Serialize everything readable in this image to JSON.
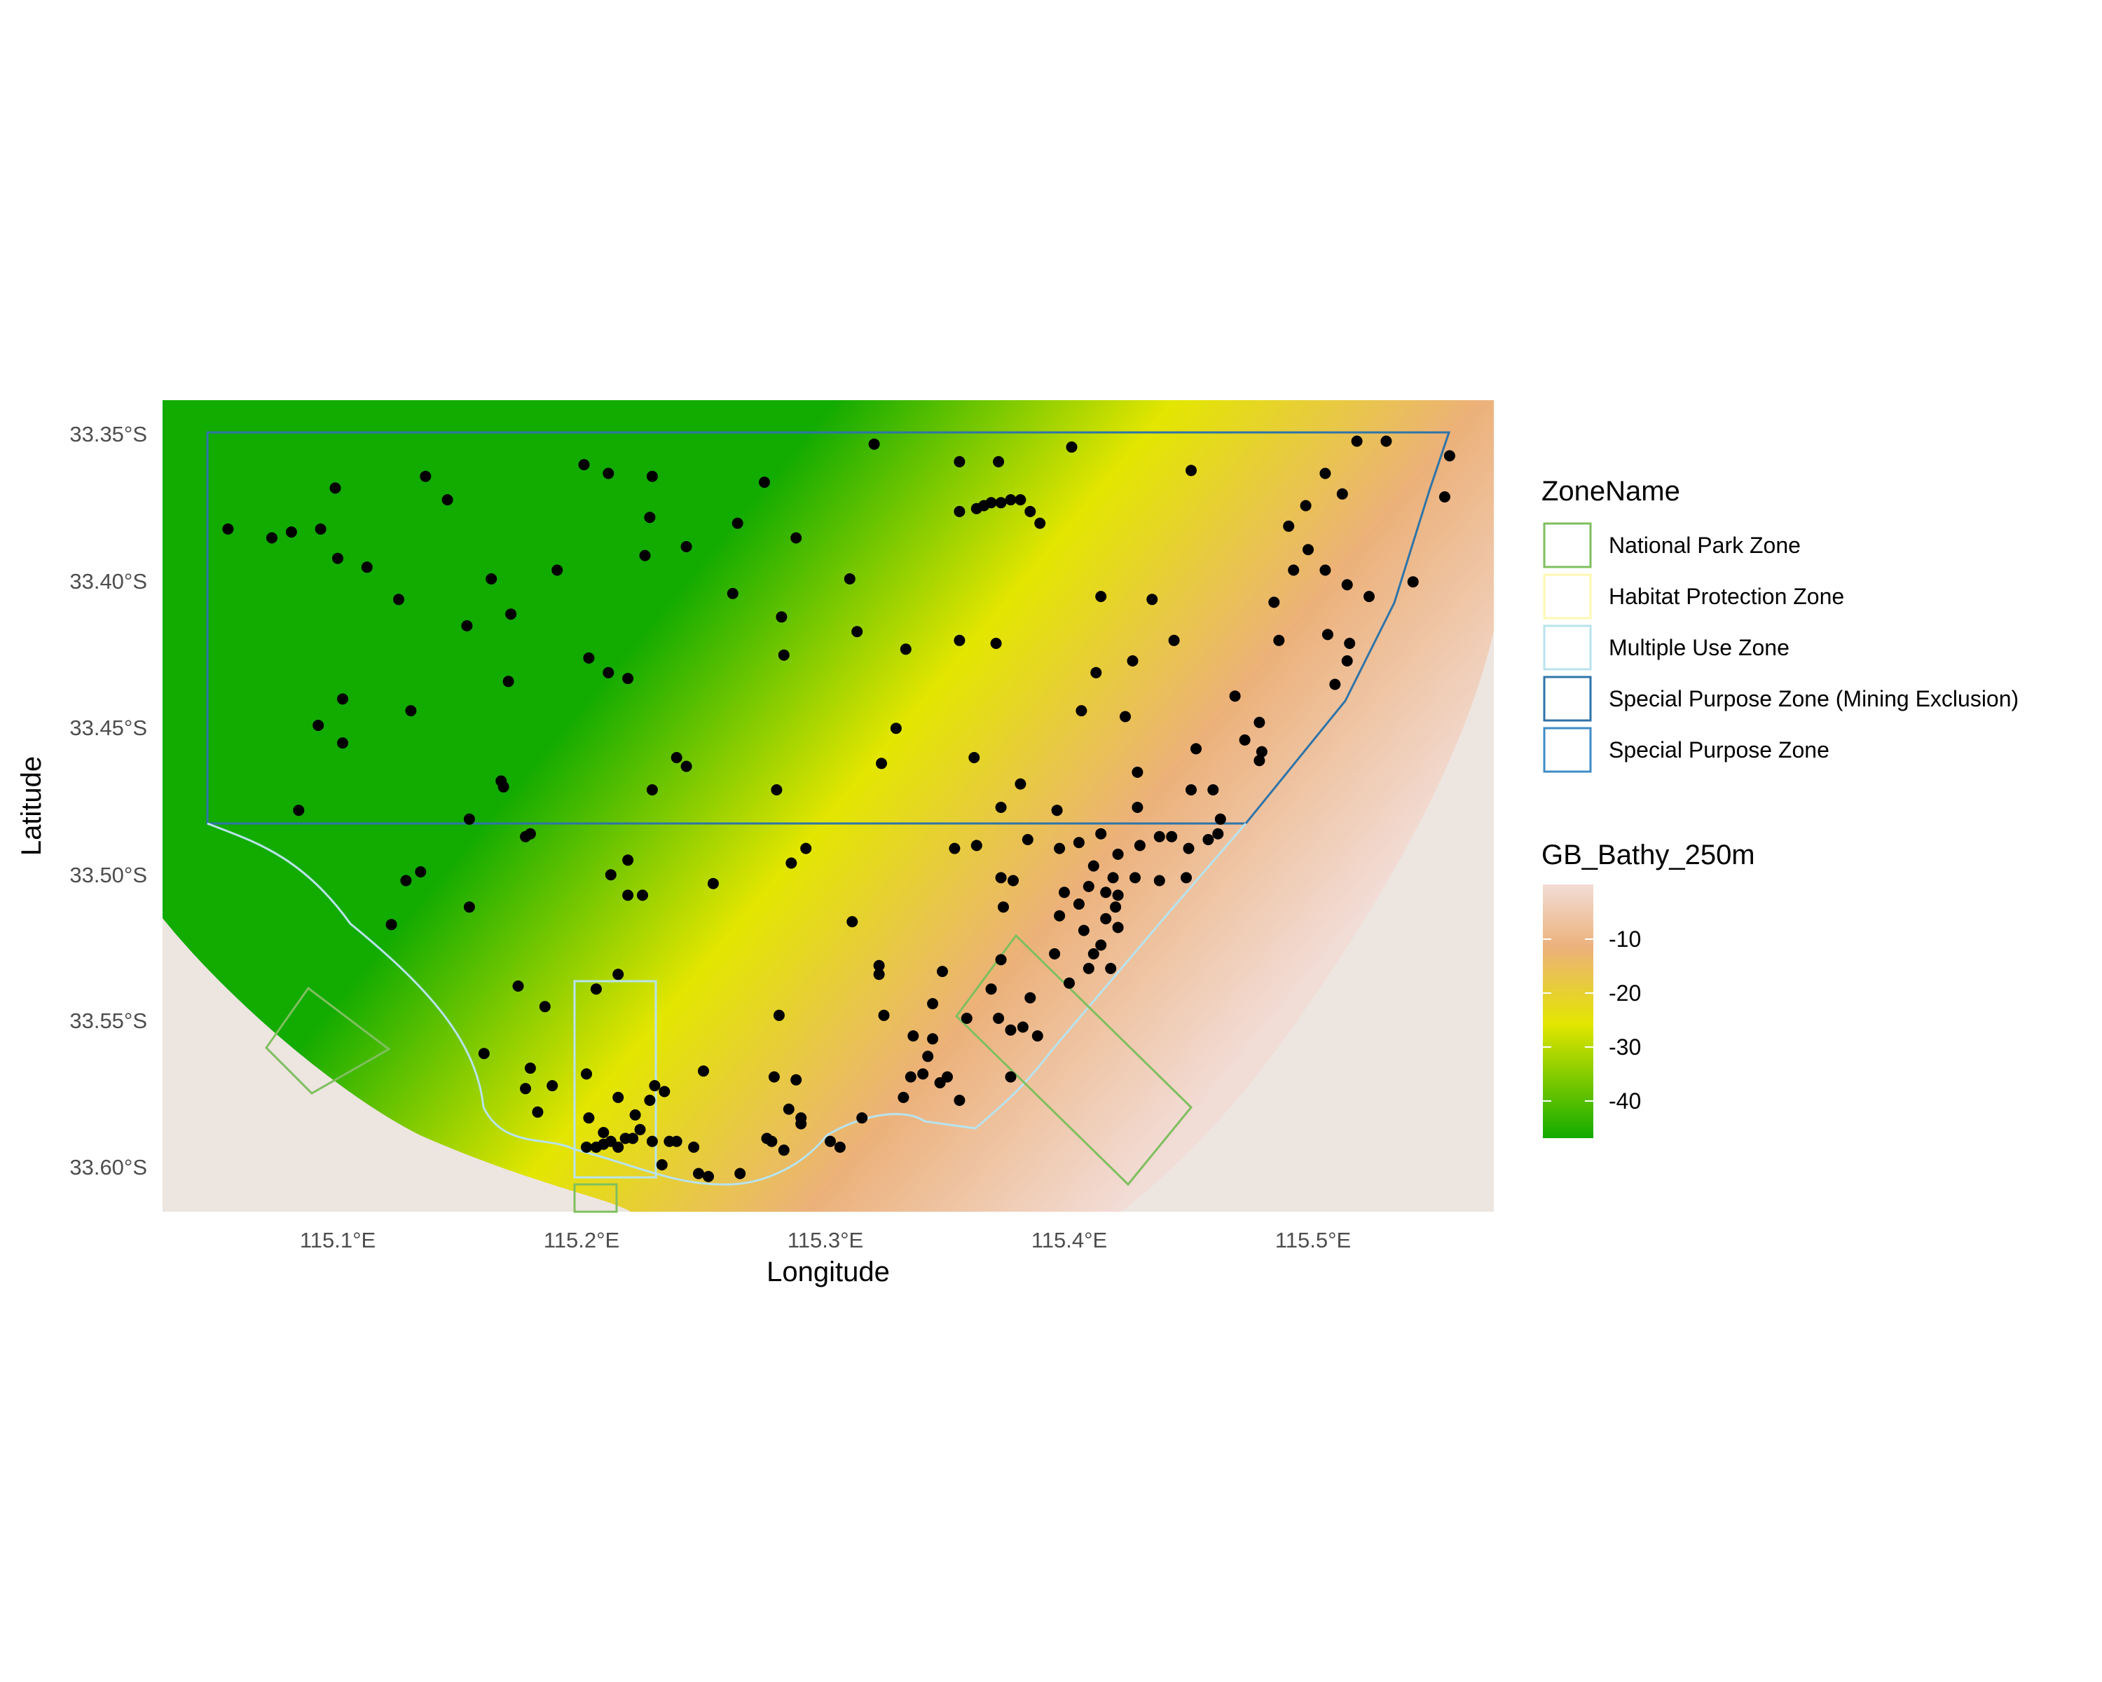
{
  "map": {
    "xlabel": "Longitude",
    "ylabel": "Latitude",
    "x_ticks": [
      "115.1°E",
      "115.2°E",
      "115.3°E",
      "115.4°E",
      "115.5°E"
    ],
    "y_ticks": [
      "33.35°S",
      "33.40°S",
      "33.45°S",
      "33.50°S",
      "33.55°S",
      "33.60°S"
    ]
  },
  "legend": {
    "zone_title": "ZoneName",
    "zones": [
      {
        "label": "National Park Zone",
        "color": "#7fbf5f"
      },
      {
        "label": "Habitat Protection Zone",
        "color": "#fff7b0"
      },
      {
        "label": "Multiple Use Zone",
        "color": "#b8e3ee"
      },
      {
        "label": "Special Purpose Zone (Mining Exclusion)",
        "color": "#2f74a8"
      },
      {
        "label": "Special Purpose Zone",
        "color": "#3f8cc6"
      }
    ],
    "bathy_title": "GB_Bathy_250m",
    "bathy_ticks": [
      "-10",
      "-20",
      "-30",
      "-40"
    ]
  },
  "colors": {
    "land": "#ede5e0",
    "deep": "#12ab00",
    "mid": "#e3e600",
    "shallow": "#ecb17a",
    "shore": "#f2dcd6",
    "points": "#000000"
  },
  "chart_data": {
    "type": "scatter",
    "xlabel": "Longitude",
    "ylabel": "Latitude",
    "xlim": [
      115.03,
      115.58
    ],
    "ylim": [
      -33.615,
      -33.34
    ],
    "bathy_range": [
      -46,
      -1
    ],
    "points": [
      [
        115.055,
        -33.383
      ],
      [
        115.073,
        -33.386
      ],
      [
        115.081,
        -33.384
      ],
      [
        115.099,
        -33.369
      ],
      [
        115.1,
        -33.393
      ],
      [
        115.112,
        -33.396
      ],
      [
        115.136,
        -33.365
      ],
      [
        115.145,
        -33.373
      ],
      [
        115.093,
        -33.383
      ],
      [
        115.125,
        -33.407
      ],
      [
        115.153,
        -33.416
      ],
      [
        115.163,
        -33.4
      ],
      [
        115.171,
        -33.412
      ],
      [
        115.102,
        -33.441
      ],
      [
        115.13,
        -33.445
      ],
      [
        115.092,
        -33.45
      ],
      [
        115.102,
        -33.456
      ],
      [
        115.084,
        -33.479
      ],
      [
        115.167,
        -33.469
      ],
      [
        115.168,
        -33.471
      ],
      [
        115.154,
        -33.482
      ],
      [
        115.177,
        -33.488
      ],
      [
        115.179,
        -33.487
      ],
      [
        115.17,
        -33.435
      ],
      [
        115.19,
        -33.397
      ],
      [
        115.201,
        -33.361
      ],
      [
        115.211,
        -33.364
      ],
      [
        115.229,
        -33.365
      ],
      [
        115.226,
        -33.392
      ],
      [
        115.228,
        -33.379
      ],
      [
        115.243,
        -33.389
      ],
      [
        115.262,
        -33.405
      ],
      [
        115.264,
        -33.381
      ],
      [
        115.275,
        -33.367
      ],
      [
        115.288,
        -33.386
      ],
      [
        115.31,
        -33.4
      ],
      [
        115.32,
        -33.354
      ],
      [
        115.355,
        -33.36
      ],
      [
        115.371,
        -33.36
      ],
      [
        115.355,
        -33.377
      ],
      [
        115.362,
        -33.376
      ],
      [
        115.365,
        -33.375
      ],
      [
        115.368,
        -33.374
      ],
      [
        115.372,
        -33.374
      ],
      [
        115.376,
        -33.373
      ],
      [
        115.38,
        -33.373
      ],
      [
        115.384,
        -33.377
      ],
      [
        115.388,
        -33.381
      ],
      [
        115.401,
        -33.355
      ],
      [
        115.413,
        -33.406
      ],
      [
        115.434,
        -33.407
      ],
      [
        115.45,
        -33.363
      ],
      [
        115.49,
        -33.382
      ],
      [
        115.497,
        -33.375
      ],
      [
        115.505,
        -33.364
      ],
      [
        115.518,
        -33.353
      ],
      [
        115.53,
        -33.353
      ],
      [
        115.556,
        -33.358
      ],
      [
        115.554,
        -33.372
      ],
      [
        115.498,
        -33.39
      ],
      [
        115.512,
        -33.371
      ],
      [
        115.492,
        -33.397
      ],
      [
        115.484,
        -33.408
      ],
      [
        115.505,
        -33.397
      ],
      [
        115.514,
        -33.402
      ],
      [
        115.523,
        -33.406
      ],
      [
        115.541,
        -33.401
      ],
      [
        115.506,
        -33.419
      ],
      [
        115.486,
        -33.421
      ],
      [
        115.515,
        -33.422
      ],
      [
        115.514,
        -33.428
      ],
      [
        115.509,
        -33.436
      ],
      [
        115.443,
        -33.421
      ],
      [
        115.468,
        -33.44
      ],
      [
        115.426,
        -33.428
      ],
      [
        115.411,
        -33.432
      ],
      [
        115.405,
        -33.445
      ],
      [
        115.423,
        -33.447
      ],
      [
        115.355,
        -33.421
      ],
      [
        115.37,
        -33.422
      ],
      [
        115.333,
        -33.424
      ],
      [
        115.313,
        -33.418
      ],
      [
        115.282,
        -33.413
      ],
      [
        115.283,
        -33.426
      ],
      [
        115.203,
        -33.427
      ],
      [
        115.211,
        -33.432
      ],
      [
        115.219,
        -33.434
      ],
      [
        115.329,
        -33.451
      ],
      [
        115.323,
        -33.463
      ],
      [
        115.239,
        -33.461
      ],
      [
        115.243,
        -33.464
      ],
      [
        115.229,
        -33.472
      ],
      [
        115.28,
        -33.472
      ],
      [
        115.361,
        -33.461
      ],
      [
        115.372,
        -33.478
      ],
      [
        115.38,
        -33.47
      ],
      [
        115.395,
        -33.479
      ],
      [
        115.428,
        -33.466
      ],
      [
        115.452,
        -33.458
      ],
      [
        115.472,
        -33.455
      ],
      [
        115.478,
        -33.449
      ],
      [
        115.478,
        -33.462
      ],
      [
        115.459,
        -33.472
      ],
      [
        115.428,
        -33.478
      ],
      [
        115.437,
        -33.488
      ],
      [
        115.462,
        -33.482
      ],
      [
        115.479,
        -33.459
      ],
      [
        115.45,
        -33.472
      ],
      [
        115.396,
        -33.492
      ],
      [
        115.404,
        -33.49
      ],
      [
        115.41,
        -33.498
      ],
      [
        115.42,
        -33.494
      ],
      [
        115.429,
        -33.491
      ],
      [
        115.442,
        -33.488
      ],
      [
        115.449,
        -33.492
      ],
      [
        115.457,
        -33.489
      ],
      [
        115.461,
        -33.487
      ],
      [
        115.418,
        -33.502
      ],
      [
        115.427,
        -33.502
      ],
      [
        115.437,
        -33.503
      ],
      [
        115.448,
        -33.502
      ],
      [
        115.398,
        -33.507
      ],
      [
        115.404,
        -33.511
      ],
      [
        115.408,
        -33.505
      ],
      [
        115.415,
        -33.507
      ],
      [
        115.419,
        -33.512
      ],
      [
        115.42,
        -33.508
      ],
      [
        115.415,
        -33.516
      ],
      [
        115.42,
        -33.519
      ],
      [
        115.406,
        -33.52
      ],
      [
        115.413,
        -33.525
      ],
      [
        115.41,
        -33.528
      ],
      [
        115.396,
        -33.515
      ],
      [
        115.394,
        -33.528
      ],
      [
        115.408,
        -33.533
      ],
      [
        115.417,
        -33.533
      ],
      [
        115.4,
        -33.538
      ],
      [
        115.377,
        -33.503
      ],
      [
        115.362,
        -33.491
      ],
      [
        115.373,
        -33.512
      ],
      [
        115.372,
        -33.53
      ],
      [
        115.348,
        -33.534
      ],
      [
        115.344,
        -33.545
      ],
      [
        115.358,
        -33.55
      ],
      [
        115.368,
        -33.54
      ],
      [
        115.371,
        -33.55
      ],
      [
        115.376,
        -33.554
      ],
      [
        115.384,
        -33.543
      ],
      [
        115.381,
        -33.553
      ],
      [
        115.387,
        -33.556
      ],
      [
        115.336,
        -33.556
      ],
      [
        115.344,
        -33.557
      ],
      [
        115.342,
        -33.563
      ],
      [
        115.35,
        -33.57
      ],
      [
        115.34,
        -33.569
      ],
      [
        115.347,
        -33.572
      ],
      [
        115.335,
        -33.57
      ],
      [
        115.355,
        -33.578
      ],
      [
        115.376,
        -33.57
      ],
      [
        115.332,
        -33.577
      ],
      [
        115.315,
        -33.584
      ],
      [
        115.306,
        -33.594
      ],
      [
        115.29,
        -33.584
      ],
      [
        115.302,
        -33.592
      ],
      [
        115.29,
        -33.586
      ],
      [
        115.276,
        -33.591
      ],
      [
        115.279,
        -33.57
      ],
      [
        115.288,
        -33.571
      ],
      [
        115.283,
        -33.595
      ],
      [
        115.285,
        -33.581
      ],
      [
        115.278,
        -33.592
      ],
      [
        115.322,
        -33.532
      ],
      [
        115.322,
        -33.535
      ],
      [
        115.324,
        -33.549
      ],
      [
        115.311,
        -33.517
      ],
      [
        115.281,
        -33.549
      ],
      [
        115.25,
        -33.568
      ],
      [
        115.246,
        -33.594
      ],
      [
        115.248,
        -33.603
      ],
      [
        115.252,
        -33.604
      ],
      [
        115.265,
        -33.603
      ],
      [
        115.215,
        -33.535
      ],
      [
        115.185,
        -33.546
      ],
      [
        115.174,
        -33.539
      ],
      [
        115.16,
        -33.562
      ],
      [
        115.179,
        -33.567
      ],
      [
        115.177,
        -33.574
      ],
      [
        115.188,
        -33.573
      ],
      [
        115.182,
        -33.582
      ],
      [
        115.202,
        -33.569
      ],
      [
        115.203,
        -33.584
      ],
      [
        115.209,
        -33.589
      ],
      [
        115.215,
        -33.577
      ],
      [
        115.222,
        -33.583
      ],
      [
        115.228,
        -33.578
      ],
      [
        115.23,
        -33.573
      ],
      [
        115.234,
        -33.575
      ],
      [
        115.236,
        -33.592
      ],
      [
        115.239,
        -33.592
      ],
      [
        115.224,
        -33.588
      ],
      [
        115.229,
        -33.592
      ],
      [
        115.218,
        -33.591
      ],
      [
        115.212,
        -33.592
      ],
      [
        115.209,
        -33.593
      ],
      [
        115.206,
        -33.594
      ],
      [
        115.202,
        -33.594
      ],
      [
        115.215,
        -33.594
      ],
      [
        115.221,
        -33.591
      ],
      [
        115.233,
        -33.6
      ],
      [
        115.206,
        -33.54
      ],
      [
        115.219,
        -33.508
      ],
      [
        115.225,
        -33.508
      ],
      [
        115.212,
        -33.501
      ],
      [
        115.219,
        -33.496
      ],
      [
        115.134,
        -33.5
      ],
      [
        115.128,
        -33.503
      ],
      [
        115.154,
        -33.512
      ],
      [
        115.122,
        -33.518
      ],
      [
        115.254,
        -33.504
      ],
      [
        115.286,
        -33.497
      ],
      [
        115.292,
        -33.492
      ],
      [
        115.353,
        -33.492
      ],
      [
        115.372,
        -33.502
      ],
      [
        115.383,
        -33.489
      ],
      [
        115.413,
        -33.487
      ]
    ]
  }
}
